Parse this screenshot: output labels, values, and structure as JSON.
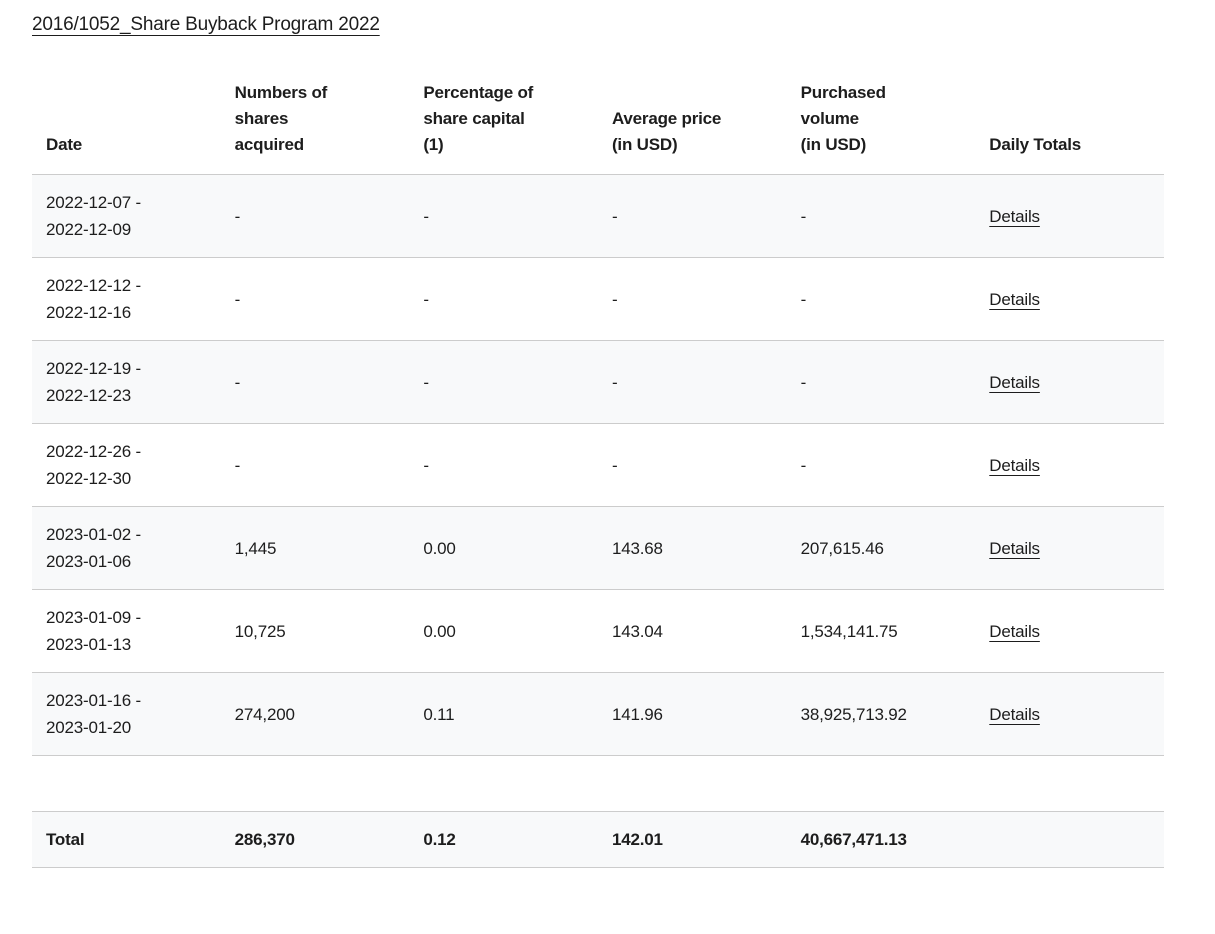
{
  "page": {
    "title": "2016/1052_Share Buyback Program 2022"
  },
  "colors": {
    "text": "#1d1d1d",
    "row_alt_background": "#f8f9fa",
    "row_border": "#cccccc",
    "page_background": "#ffffff"
  },
  "table": {
    "columns": {
      "date": "Date",
      "shares": "Numbers of\nshares\nacquired",
      "percentage": "Percentage of\nshare capital\n(1)",
      "avg_price": "Average price\n(in USD)",
      "volume": "Purchased\nvolume\n(in USD)",
      "daily_totals": "Daily Totals"
    },
    "rows": [
      {
        "date": "2022-12-07 -\n2022-12-09",
        "shares": "-",
        "percentage": "-",
        "avg_price": "-",
        "volume": "-",
        "details_label": "Details"
      },
      {
        "date": "2022-12-12 -\n2022-12-16",
        "shares": "-",
        "percentage": "-",
        "avg_price": "-",
        "volume": "-",
        "details_label": "Details"
      },
      {
        "date": "2022-12-19 -\n2022-12-23",
        "shares": "-",
        "percentage": "-",
        "avg_price": "-",
        "volume": "-",
        "details_label": "Details"
      },
      {
        "date": "2022-12-26 -\n2022-12-30",
        "shares": "-",
        "percentage": "-",
        "avg_price": "-",
        "volume": "-",
        "details_label": "Details"
      },
      {
        "date": "2023-01-02 -\n2023-01-06",
        "shares": "1,445",
        "percentage": "0.00",
        "avg_price": "143.68",
        "volume": "207,615.46",
        "details_label": "Details"
      },
      {
        "date": "2023-01-09 -\n2023-01-13",
        "shares": "10,725",
        "percentage": "0.00",
        "avg_price": "143.04",
        "volume": "1,534,141.75",
        "details_label": "Details"
      },
      {
        "date": "2023-01-16 -\n2023-01-20",
        "shares": "274,200",
        "percentage": "0.11",
        "avg_price": "141.96",
        "volume": "38,925,713.92",
        "details_label": "Details"
      }
    ],
    "total": {
      "label": "Total",
      "shares": "286,370",
      "percentage": "0.12",
      "avg_price": "142.01",
      "volume": "40,667,471.13"
    }
  }
}
